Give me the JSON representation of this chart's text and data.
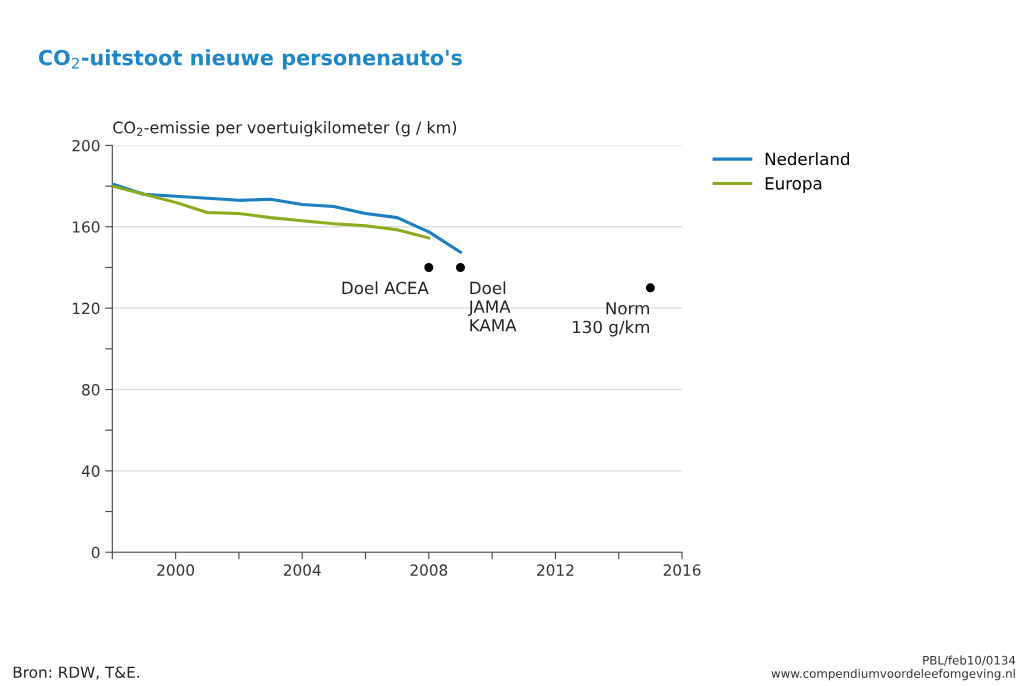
{
  "chart_data": {
    "type": "line",
    "title": "CO$_{2}$-uitstoot nieuwe personenauto's",
    "ylabel": "CO$_{2}$-emissie per voertuigkilometer (g / km)",
    "x": [
      1998,
      1999,
      2000,
      2001,
      2002,
      2003,
      2004,
      2005,
      2006,
      2007,
      2008,
      2009
    ],
    "series": [
      {
        "name": "Nederland",
        "color": "#1b7fc0",
        "values": [
          181,
          176,
          175,
          174,
          173,
          173.5,
          171,
          170,
          166.5,
          164.5,
          157.5,
          147.5
        ]
      },
      {
        "name": "Europa",
        "color": "#8bab1f",
        "values": [
          180,
          176,
          172,
          167,
          166.5,
          164.5,
          163,
          161.5,
          160.5,
          158.5,
          154.5,
          null
        ]
      },
      {
        "type": "scatter",
        "marker": "circle",
        "color": "#000000",
        "x": [
          2008,
          2009,
          2015
        ],
        "values": [
          140,
          140,
          130
        ]
      }
    ],
    "xlim": [
      1998,
      2016
    ],
    "ylim": [
      0,
      200
    ],
    "xticks": [
      {
        "value": 1998,
        "label": null
      },
      2000,
      {
        "value": 2002,
        "label": null
      },
      2004,
      {
        "value": 2006,
        "label": null
      },
      2008,
      {
        "value": 2010,
        "label": null
      },
      2012,
      {
        "value": 2014,
        "label": null
      },
      2016
    ],
    "yticks": [
      0,
      {
        "value": 20,
        "label": null
      },
      40,
      {
        "value": 60,
        "label": null
      },
      80,
      {
        "value": 100,
        "label": null
      },
      120,
      {
        "value": 140,
        "label": null
      },
      160,
      {
        "value": 180,
        "label": null
      },
      200
    ],
    "grid": "y",
    "legend": "top right",
    "marker": "none",
    "annotations": [
      {
        "text": "Doel ACEA",
        "x": 2008,
        "y": 140
      },
      {
        "text": "Doel\nJAMA\nKAMA",
        "x": 2009,
        "y": 140
      },
      {
        "text": "Norm\n130 g/km",
        "x": 2015,
        "y": 130
      },
      "Bron: RDW, T&E.",
      "PBL/feb10/0134\nwww.compendiumvoordeleefomgeving.nl"
    ]
  }
}
